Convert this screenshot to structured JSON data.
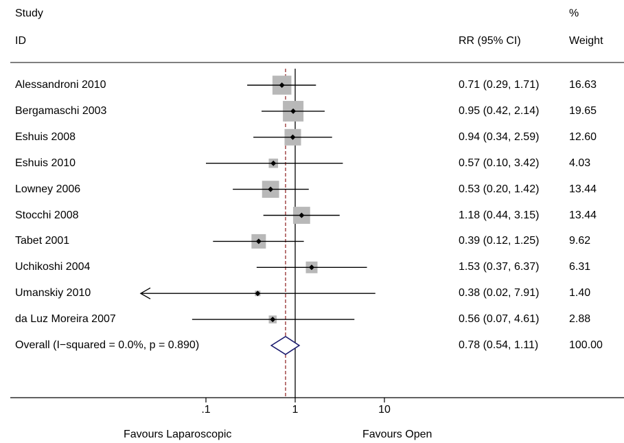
{
  "header": {
    "study_line1": "Study",
    "study_line2": "ID",
    "ci_header": "RR (95% CI)",
    "weight_line1": "%",
    "weight_line2": "Weight"
  },
  "chart_data": {
    "type": "forest",
    "scale": "log",
    "xlim": [
      0.015,
      25
    ],
    "ticks": [
      {
        "value": 0.1,
        "label": ".1"
      },
      {
        "value": 1,
        "label": "1"
      },
      {
        "value": 10,
        "label": "10"
      }
    ],
    "null_value": 1,
    "footer_left": "Favours Laparoscopic",
    "footer_right": "Favours Open",
    "rows": [
      {
        "study": "Alessandroni 2010",
        "rr": 0.71,
        "lo": 0.29,
        "hi": 1.71,
        "ci_text": "0.71 (0.29, 1.71)",
        "weight": 16.63,
        "weight_text": "16.63"
      },
      {
        "study": "Bergamaschi 2003",
        "rr": 0.95,
        "lo": 0.42,
        "hi": 2.14,
        "ci_text": "0.95 (0.42, 2.14)",
        "weight": 19.65,
        "weight_text": "19.65"
      },
      {
        "study": "Eshuis 2008",
        "rr": 0.94,
        "lo": 0.34,
        "hi": 2.59,
        "ci_text": "0.94 (0.34, 2.59)",
        "weight": 12.6,
        "weight_text": "12.60"
      },
      {
        "study": "Eshuis 2010",
        "rr": 0.57,
        "lo": 0.1,
        "hi": 3.42,
        "ci_text": "0.57 (0.10, 3.42)",
        "weight": 4.03,
        "weight_text": "4.03"
      },
      {
        "study": "Lowney 2006",
        "rr": 0.53,
        "lo": 0.2,
        "hi": 1.42,
        "ci_text": "0.53 (0.20, 1.42)",
        "weight": 13.44,
        "weight_text": "13.44"
      },
      {
        "study": "Stocchi 2008",
        "rr": 1.18,
        "lo": 0.44,
        "hi": 3.15,
        "ci_text": "1.18 (0.44, 3.15)",
        "weight": 13.44,
        "weight_text": "13.44"
      },
      {
        "study": "Tabet 2001",
        "rr": 0.39,
        "lo": 0.12,
        "hi": 1.25,
        "ci_text": "0.39 (0.12, 1.25)",
        "weight": 9.62,
        "weight_text": "9.62"
      },
      {
        "study": "Uchikoshi 2004",
        "rr": 1.53,
        "lo": 0.37,
        "hi": 6.37,
        "ci_text": "1.53 (0.37, 6.37)",
        "weight": 6.31,
        "weight_text": "6.31"
      },
      {
        "study": "Umanskiy 2010",
        "rr": 0.38,
        "lo": 0.02,
        "hi": 7.91,
        "ci_text": "0.38 (0.02, 7.91)",
        "weight": 1.4,
        "weight_text": "1.40",
        "lo_arrow": true
      },
      {
        "study": "da Luz Moreira 2007",
        "rr": 0.56,
        "lo": 0.07,
        "hi": 4.61,
        "ci_text": "0.56 (0.07, 4.61)",
        "weight": 2.88,
        "weight_text": "2.88"
      }
    ],
    "overall": {
      "label": "Overall  (I−squared = 0.0%, p = 0.890)",
      "rr": 0.78,
      "lo": 0.54,
      "hi": 1.11,
      "ci_text": "0.78 (0.54, 1.11)",
      "weight_text": "100.00"
    },
    "colors": {
      "box": "#b8b8b8",
      "diamond": "#1a1a6e",
      "overall_line": "#8b1a1a"
    }
  }
}
